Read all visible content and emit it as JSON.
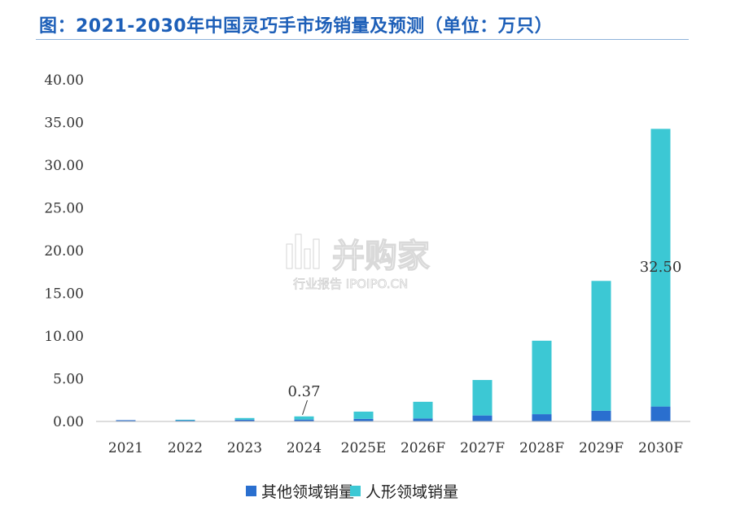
{
  "title": "图：2021-2030年中国灵巧手市场销量及预测（单位：万只）",
  "watermark": {
    "brand": "并购家",
    "sub": "行业报告 IPOIPO.CN"
  },
  "chart_data": {
    "type": "bar",
    "stacked": true,
    "categories": [
      "2021",
      "2022",
      "2023",
      "2024",
      "2025E",
      "2026F",
      "2027F",
      "2028F",
      "2029F",
      "2030F"
    ],
    "series": [
      {
        "name": "其他领域销量",
        "color": "#2a6fcf",
        "values": [
          0.15,
          0.18,
          0.2,
          0.22,
          0.3,
          0.35,
          0.7,
          0.85,
          1.25,
          1.75
        ]
      },
      {
        "name": "人形领域销量",
        "color": "#3cc8d4",
        "values": [
          0.0,
          0.02,
          0.2,
          0.37,
          0.85,
          1.95,
          4.15,
          8.6,
          15.2,
          32.5
        ]
      }
    ],
    "ylim": [
      0,
      40
    ],
    "yticks": [
      "0.00",
      "5.00",
      "10.00",
      "15.00",
      "20.00",
      "25.00",
      "30.00",
      "35.00",
      "40.00"
    ],
    "annotations": [
      {
        "text": "0.37",
        "category": "2024",
        "series": "人形领域销量"
      },
      {
        "text": "32.50",
        "category": "2030F",
        "series": "人形领域销量"
      }
    ],
    "legend": "bottom",
    "grid": false
  }
}
